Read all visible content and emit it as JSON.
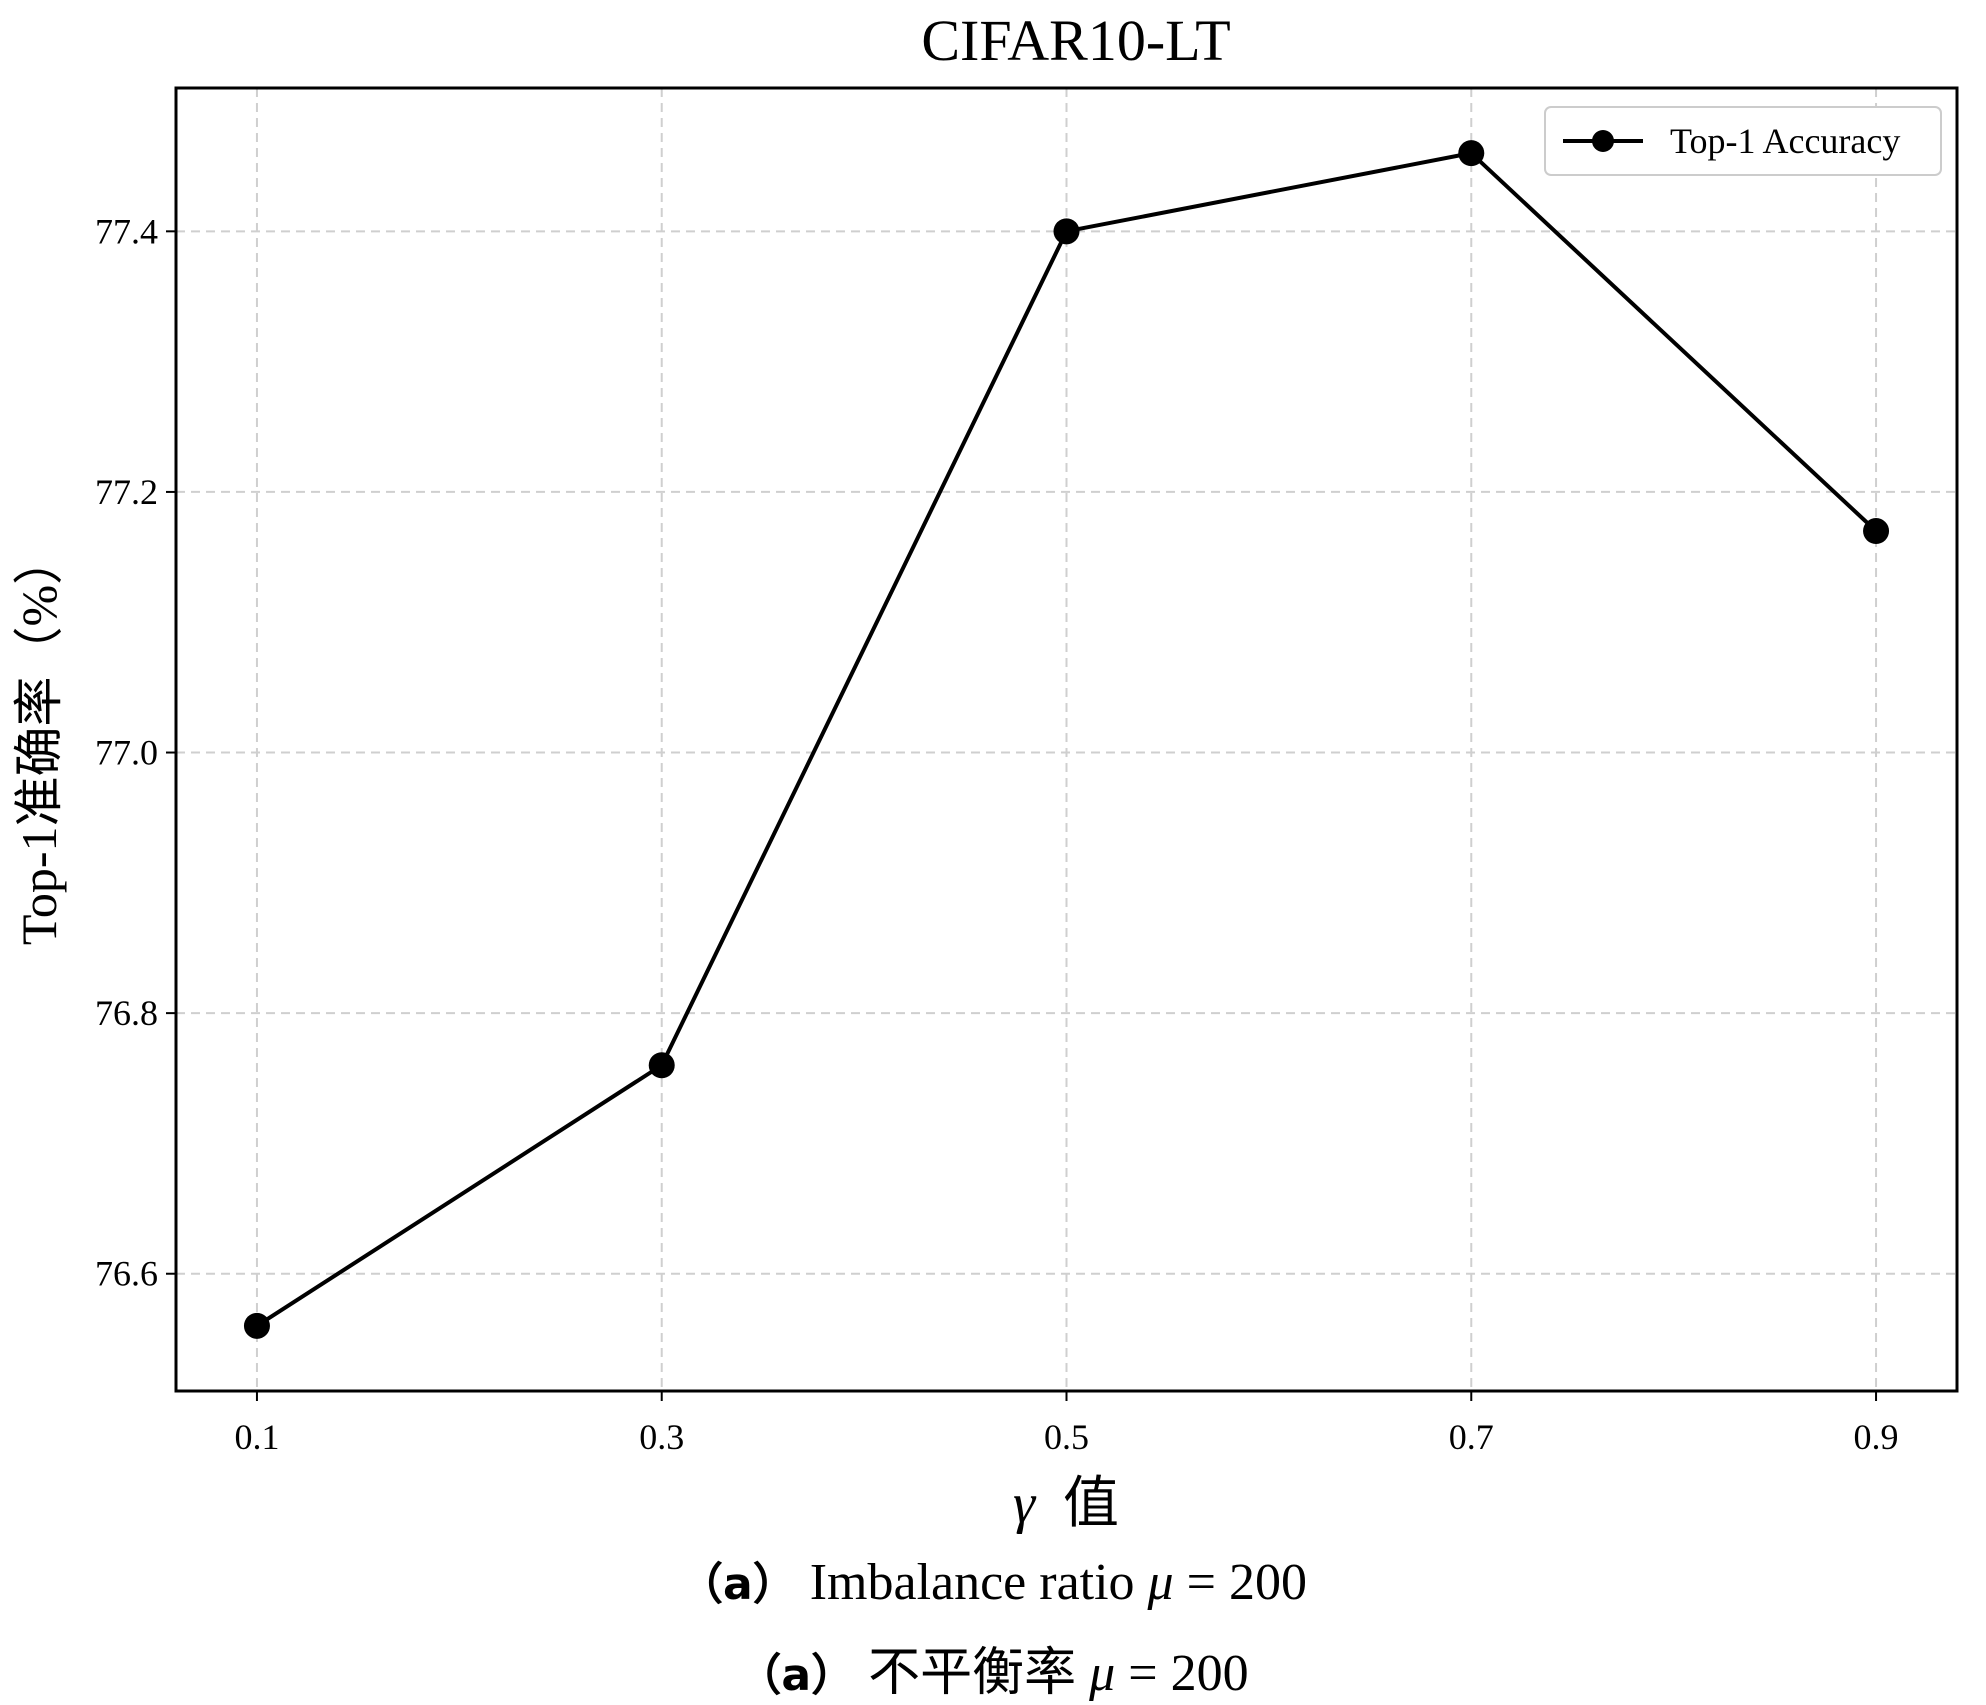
{
  "chart_data": {
    "type": "line",
    "title": "CIFAR10-LT",
    "xlabel_symbol": "γ",
    "xlabel_text": "值",
    "ylabel": "Top-1准确率（%）",
    "x": [
      0.1,
      0.3,
      0.5,
      0.7,
      0.9
    ],
    "x_tick_labels": [
      "0.1",
      "0.3",
      "0.5",
      "0.7",
      "0.9"
    ],
    "y_ticks": [
      76.6,
      76.8,
      77.0,
      77.2,
      77.4
    ],
    "y_tick_labels": [
      "76.6",
      "76.8",
      "77.0",
      "77.2",
      "77.4"
    ],
    "xlim": [
      0.06,
      0.94
    ],
    "ylim": [
      76.51,
      77.51
    ],
    "grid": true,
    "legend_position": "top-right",
    "series": [
      {
        "name": "Top-1 Accuracy",
        "color": "#000000",
        "marker": "circle",
        "values": [
          76.56,
          76.76,
          77.4,
          77.46,
          77.17
        ]
      }
    ]
  },
  "captions": {
    "english": {
      "tag": "（a）",
      "text": "Imbalance ratio",
      "symbol": "μ",
      "equation": "= 200"
    },
    "chinese": {
      "tag": "（a）",
      "text": "不平衡率",
      "symbol": "μ",
      "equation": "= 200"
    }
  }
}
